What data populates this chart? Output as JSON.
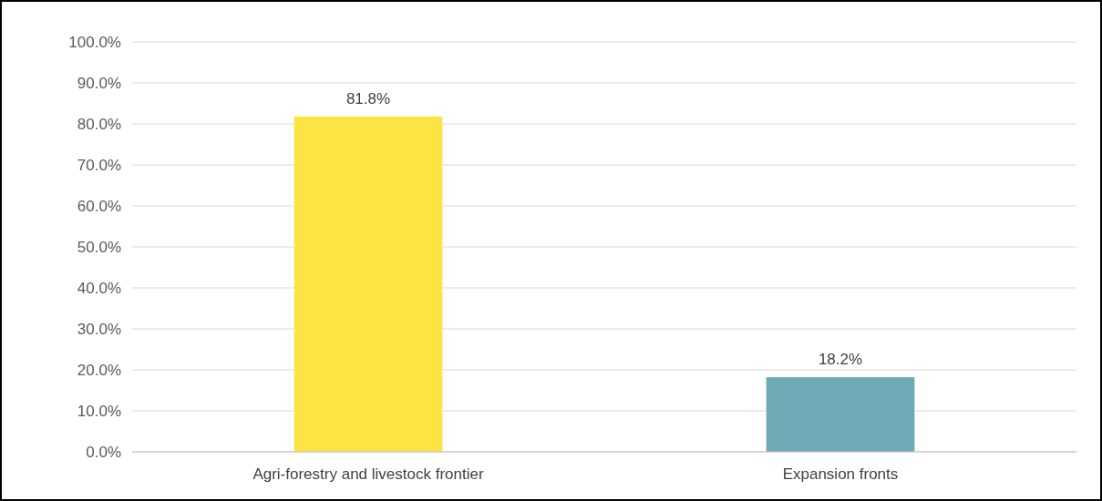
{
  "chart_data": {
    "type": "bar",
    "categories": [
      "Agri-forestry and livestock frontier",
      "Expansion fronts"
    ],
    "values": [
      81.8,
      18.2
    ],
    "colors": [
      "#fbe443",
      "#70a9b5"
    ],
    "value_labels": [
      "81.8%",
      "18.2%"
    ],
    "ylim": [
      0,
      100
    ],
    "yticks": [
      {
        "value": 0,
        "label": "0.0%"
      },
      {
        "value": 10,
        "label": "10.0%"
      },
      {
        "value": 20,
        "label": "20.0%"
      },
      {
        "value": 30,
        "label": "30.0%"
      },
      {
        "value": 40,
        "label": "40.0%"
      },
      {
        "value": 50,
        "label": "50.0%"
      },
      {
        "value": 60,
        "label": "60.0%"
      },
      {
        "value": 70,
        "label": "70.0%"
      },
      {
        "value": 80,
        "label": "80.0%"
      },
      {
        "value": 90,
        "label": "90.0%"
      },
      {
        "value": 100,
        "label": "100.0%"
      }
    ],
    "grid": "y"
  }
}
